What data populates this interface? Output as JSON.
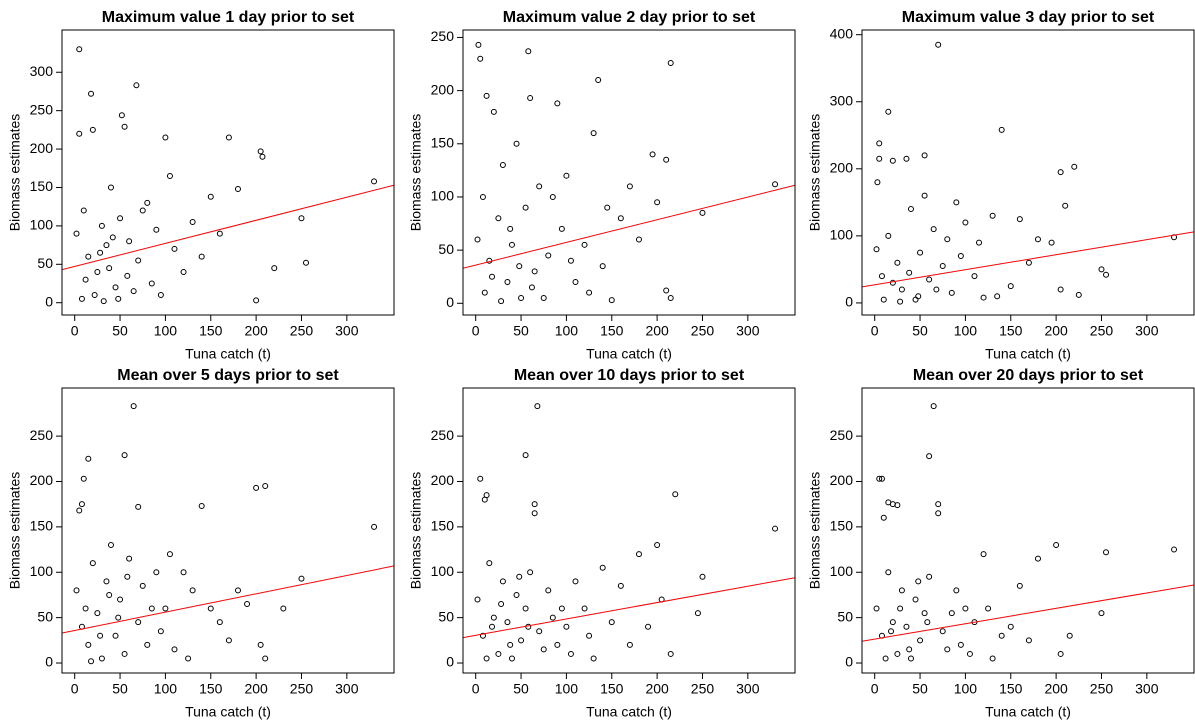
{
  "chart_data": [
    {
      "type": "scatter",
      "title": "Maximum value 1 day prior to set",
      "xlabel": "Tuna catch (t)",
      "ylabel": "Biomass estimates",
      "color": "#000000",
      "xlim": [
        -14,
        352
      ],
      "ylim": [
        -16,
        355
      ],
      "xticks": [
        0,
        50,
        100,
        150,
        200,
        250,
        300
      ],
      "yticks": [
        0,
        50,
        100,
        150,
        200,
        250,
        300
      ],
      "x": [
        5,
        68,
        18,
        52,
        55,
        5,
        20,
        100,
        170,
        205,
        207,
        330,
        250,
        255,
        200,
        220,
        180,
        150,
        2,
        10,
        15,
        25,
        30,
        35,
        40,
        45,
        50,
        60,
        70,
        80,
        90,
        110,
        120,
        130,
        140,
        160,
        8,
        12,
        22,
        28,
        32,
        38,
        42,
        48,
        58,
        65,
        75,
        85,
        95,
        105
      ],
      "y": [
        330,
        283,
        272,
        244,
        229,
        220,
        225,
        215,
        215,
        197,
        190,
        158,
        110,
        52,
        3,
        45,
        148,
        138,
        90,
        120,
        60,
        40,
        100,
        75,
        150,
        20,
        110,
        80,
        55,
        130,
        95,
        70,
        40,
        105,
        60,
        90,
        5,
        30,
        10,
        65,
        2,
        45,
        85,
        5,
        35,
        15,
        120,
        25,
        10,
        165
      ],
      "fit": {
        "color": "#ff0000",
        "x": [
          -14,
          352
        ],
        "y": [
          43,
          153
        ]
      }
    },
    {
      "type": "scatter",
      "title": "Maximum value 2 day prior to set",
      "xlabel": "Tuna catch (t)",
      "ylabel": "Biomass estimates",
      "color": "#000000",
      "xlim": [
        -14,
        352
      ],
      "ylim": [
        -11,
        257
      ],
      "xticks": [
        0,
        50,
        100,
        150,
        200,
        250,
        300
      ],
      "yticks": [
        0,
        50,
        100,
        150,
        200,
        250
      ],
      "x": [
        3,
        5,
        58,
        12,
        135,
        215,
        90,
        60,
        20,
        195,
        210,
        330,
        250,
        215,
        210,
        150,
        170,
        100,
        2,
        8,
        15,
        25,
        30,
        35,
        40,
        45,
        50,
        55,
        65,
        70,
        80,
        95,
        110,
        120,
        130,
        140,
        160,
        180,
        10,
        18,
        28,
        38,
        48,
        62,
        75,
        85,
        105,
        125,
        145,
        200
      ],
      "y": [
        243,
        230,
        237,
        195,
        210,
        226,
        188,
        193,
        180,
        140,
        135,
        112,
        85,
        5,
        12,
        3,
        110,
        120,
        60,
        100,
        40,
        80,
        130,
        20,
        55,
        150,
        5,
        90,
        30,
        110,
        45,
        70,
        20,
        55,
        160,
        35,
        80,
        60,
        10,
        25,
        2,
        70,
        35,
        15,
        5,
        100,
        40,
        10,
        90,
        95
      ],
      "fit": {
        "color": "#ff0000",
        "x": [
          -14,
          352
        ],
        "y": [
          33,
          111
        ]
      }
    },
    {
      "type": "scatter",
      "title": "Maximum value 3 day prior to set",
      "xlabel": "Tuna catch (t)",
      "ylabel": "Biomass estimates",
      "color": "#000000",
      "xlim": [
        -14,
        352
      ],
      "ylim": [
        -18,
        407
      ],
      "xticks": [
        0,
        50,
        100,
        150,
        200,
        250,
        300
      ],
      "yticks": [
        0,
        100,
        200,
        300,
        400
      ],
      "x": [
        70,
        15,
        140,
        5,
        5,
        20,
        3,
        55,
        35,
        220,
        205,
        210,
        330,
        250,
        255,
        225,
        195,
        180,
        160,
        130,
        100,
        80,
        2,
        8,
        15,
        25,
        30,
        40,
        45,
        50,
        60,
        65,
        75,
        85,
        95,
        110,
        120,
        150,
        170,
        10,
        20,
        28,
        38,
        48,
        55,
        68,
        90,
        115,
        135,
        205
      ],
      "y": [
        385,
        285,
        258,
        238,
        215,
        212,
        180,
        220,
        215,
        203,
        195,
        145,
        98,
        50,
        42,
        12,
        90,
        95,
        125,
        130,
        120,
        95,
        80,
        40,
        100,
        60,
        20,
        140,
        5,
        75,
        35,
        110,
        55,
        15,
        70,
        40,
        8,
        25,
        60,
        5,
        30,
        2,
        45,
        10,
        160,
        20,
        150,
        90,
        10,
        20
      ],
      "fit": {
        "color": "#ff0000",
        "x": [
          -14,
          352
        ],
        "y": [
          24,
          106
        ]
      }
    },
    {
      "type": "scatter",
      "title": "Mean over 5 days prior to set",
      "xlabel": "Tuna catch (t)",
      "ylabel": "Biomass estimates",
      "color": "#000000",
      "xlim": [
        -14,
        352
      ],
      "ylim": [
        -11,
        303
      ],
      "xticks": [
        0,
        50,
        100,
        150,
        200,
        250,
        300
      ],
      "yticks": [
        0,
        50,
        100,
        150,
        200,
        250
      ],
      "x": [
        65,
        55,
        15,
        10,
        210,
        200,
        330,
        8,
        5,
        70,
        140,
        250,
        205,
        210,
        230,
        180,
        160,
        120,
        100,
        2,
        8,
        15,
        20,
        25,
        30,
        35,
        40,
        45,
        50,
        55,
        60,
        70,
        75,
        80,
        90,
        95,
        110,
        125,
        130,
        150,
        170,
        12,
        18,
        28,
        38,
        48,
        58,
        85,
        105,
        190
      ],
      "y": [
        283,
        229,
        225,
        203,
        195,
        193,
        150,
        175,
        168,
        172,
        173,
        93,
        20,
        5,
        60,
        80,
        45,
        100,
        60,
        80,
        40,
        20,
        110,
        55,
        5,
        90,
        130,
        30,
        70,
        10,
        115,
        45,
        85,
        20,
        100,
        35,
        15,
        5,
        80,
        60,
        25,
        60,
        2,
        30,
        75,
        50,
        95,
        60,
        120,
        65
      ],
      "fit": {
        "color": "#ff0000",
        "x": [
          -14,
          352
        ],
        "y": [
          33,
          107
        ]
      }
    },
    {
      "type": "scatter",
      "title": "Mean over 10 days prior to set",
      "xlabel": "Tuna catch (t)",
      "ylabel": "Biomass estimates",
      "color": "#000000",
      "xlim": [
        -14,
        352
      ],
      "ylim": [
        -11,
        303
      ],
      "xticks": [
        0,
        50,
        100,
        150,
        200,
        250,
        300
      ],
      "yticks": [
        0,
        50,
        100,
        150,
        200,
        250
      ],
      "x": [
        68,
        55,
        5,
        10,
        12,
        65,
        65,
        220,
        200,
        330,
        250,
        245,
        215,
        205,
        180,
        160,
        140,
        120,
        100,
        2,
        8,
        15,
        20,
        25,
        30,
        35,
        40,
        45,
        50,
        55,
        60,
        70,
        75,
        80,
        90,
        95,
        110,
        125,
        130,
        150,
        170,
        12,
        18,
        28,
        38,
        48,
        58,
        85,
        105,
        190
      ],
      "y": [
        283,
        229,
        203,
        180,
        185,
        175,
        165,
        186,
        130,
        148,
        95,
        55,
        10,
        70,
        120,
        85,
        105,
        60,
        40,
        70,
        30,
        110,
        50,
        10,
        90,
        45,
        5,
        75,
        25,
        60,
        100,
        35,
        15,
        80,
        20,
        60,
        90,
        30,
        5,
        45,
        20,
        5,
        40,
        65,
        20,
        95,
        40,
        50,
        10,
        40
      ],
      "fit": {
        "color": "#ff0000",
        "x": [
          -14,
          352
        ],
        "y": [
          28,
          94
        ]
      }
    },
    {
      "type": "scatter",
      "title": "Mean over 20 days prior to set",
      "xlabel": "Tuna catch (t)",
      "ylabel": "Biomass estimates",
      "color": "#000000",
      "xlim": [
        -14,
        352
      ],
      "ylim": [
        -11,
        303
      ],
      "xticks": [
        0,
        50,
        100,
        150,
        200,
        250,
        300
      ],
      "yticks": [
        0,
        50,
        100,
        150,
        200,
        250
      ],
      "x": [
        65,
        5,
        8,
        60,
        15,
        20,
        25,
        70,
        70,
        10,
        200,
        330,
        255,
        250,
        205,
        215,
        180,
        160,
        140,
        120,
        100,
        2,
        8,
        15,
        20,
        25,
        30,
        35,
        40,
        45,
        50,
        55,
        60,
        75,
        80,
        90,
        95,
        110,
        125,
        130,
        150,
        170,
        12,
        18,
        28,
        38,
        48,
        58,
        85,
        105
      ],
      "y": [
        283,
        203,
        203,
        228,
        177,
        175,
        174,
        175,
        165,
        160,
        130,
        125,
        122,
        55,
        10,
        30,
        115,
        85,
        30,
        120,
        60,
        60,
        30,
        100,
        45,
        10,
        80,
        40,
        5,
        70,
        25,
        55,
        95,
        35,
        15,
        80,
        20,
        45,
        60,
        5,
        40,
        25,
        5,
        35,
        60,
        15,
        90,
        45,
        55,
        10
      ],
      "fit": {
        "color": "#ff0000",
        "x": [
          -14,
          352
        ],
        "y": [
          24,
          86
        ]
      }
    }
  ]
}
